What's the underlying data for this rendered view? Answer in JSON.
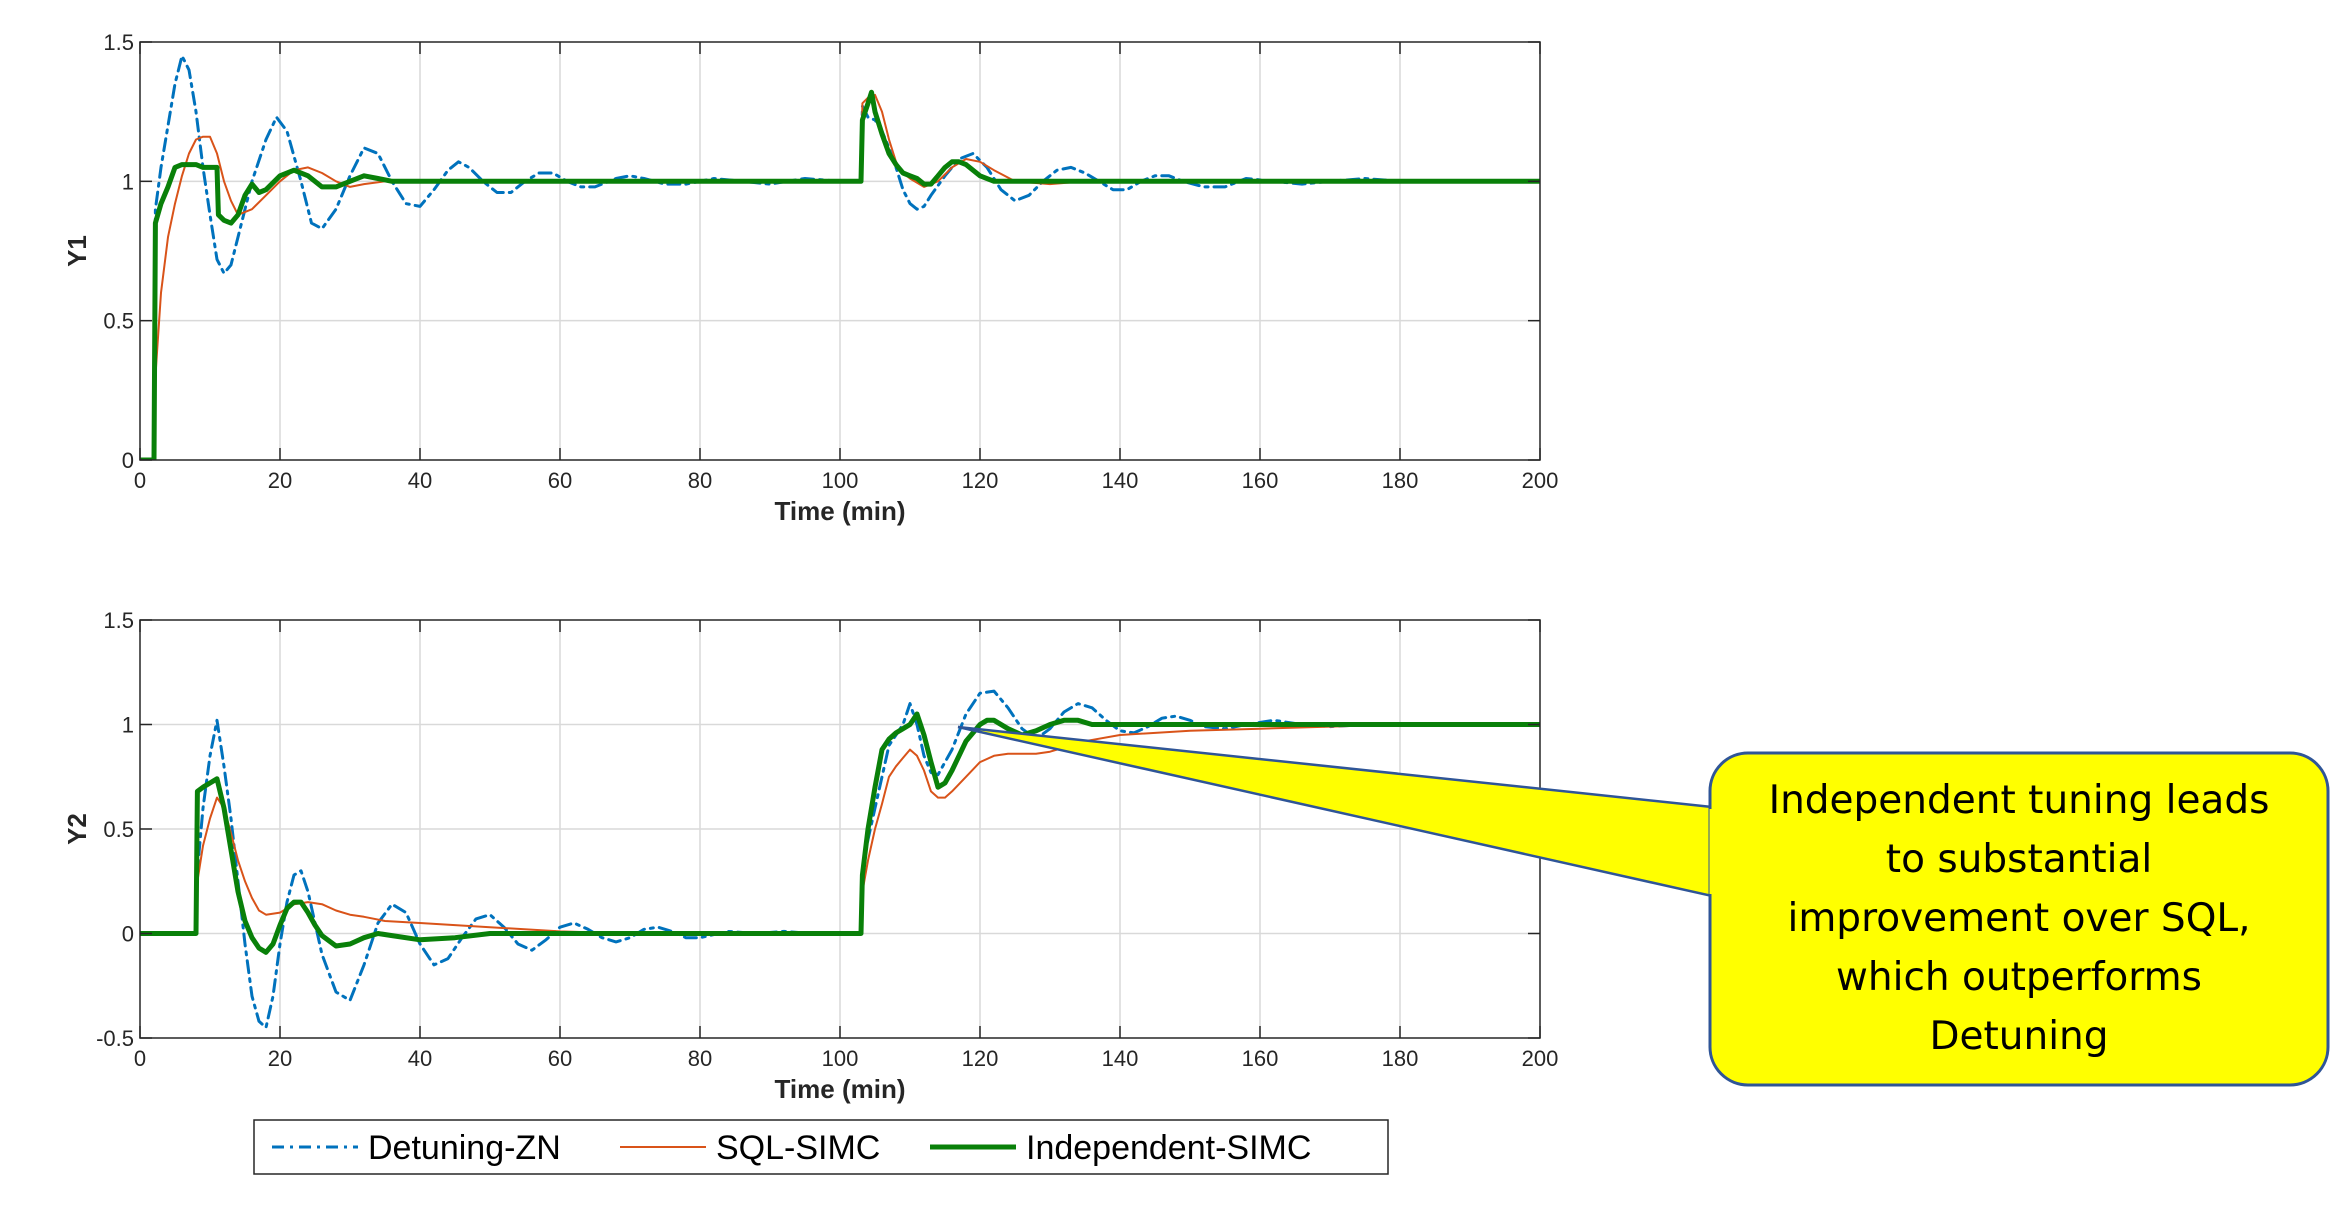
{
  "legend": {
    "entries": [
      {
        "label": "Detuning-ZN",
        "color": "#0072BD",
        "dash": "dashdot",
        "width": 3
      },
      {
        "label": "SQL-SIMC",
        "color": "#D95319",
        "dash": "solid",
        "width": 2
      },
      {
        "label": "Independent-SIMC",
        "color": "#098009",
        "dash": "solid",
        "width": 5
      }
    ]
  },
  "callout": {
    "lines": [
      "Independent tuning leads",
      "to substantial",
      "improvement over SQL,",
      "which outperforms",
      "Detuning"
    ],
    "fill": "#FFFF00",
    "border": "#2F5597"
  },
  "chart_data": [
    {
      "type": "line",
      "title": "",
      "xlabel": "Time (min)",
      "ylabel": "Y1",
      "xlim": [
        0,
        200
      ],
      "ylim": [
        0,
        1.5
      ],
      "xticks": [
        0,
        20,
        40,
        60,
        80,
        100,
        120,
        140,
        160,
        180,
        200
      ],
      "yticks": [
        0,
        0.5,
        1,
        1.5
      ],
      "ytick_labels": [
        "0",
        "0.5",
        "1",
        "1.5"
      ],
      "grid": true,
      "series": [
        {
          "name": "Detuning-ZN",
          "x": [
            0,
            2,
            2.2,
            3,
            4,
            5,
            6,
            7,
            8,
            9,
            10,
            11,
            12,
            13,
            14,
            16,
            18,
            19.5,
            21,
            23,
            24.5,
            26,
            28,
            30,
            32,
            34,
            36,
            38,
            40,
            42,
            44,
            45.5,
            47,
            49,
            51,
            53,
            55,
            57,
            59,
            61,
            63,
            65,
            68,
            70,
            72,
            75,
            78,
            82,
            86,
            90,
            95,
            100,
            103,
            103.2,
            104,
            105,
            106,
            107,
            108,
            109,
            110,
            111,
            112,
            113,
            115,
            117,
            119,
            121,
            123,
            125,
            127,
            129,
            131,
            133,
            135,
            137,
            139,
            141,
            143,
            145,
            147,
            149,
            152,
            155,
            158,
            162,
            166,
            170,
            175,
            180,
            190,
            200
          ],
          "y": [
            0,
            0,
            0.9,
            1.05,
            1.2,
            1.35,
            1.45,
            1.4,
            1.25,
            1.05,
            0.88,
            0.72,
            0.67,
            0.7,
            0.8,
            1.0,
            1.15,
            1.23,
            1.18,
            1.0,
            0.85,
            0.83,
            0.9,
            1.02,
            1.12,
            1.1,
            1.0,
            0.92,
            0.91,
            0.97,
            1.04,
            1.07,
            1.05,
            1.0,
            0.96,
            0.96,
            1.0,
            1.03,
            1.03,
            1.0,
            0.98,
            0.98,
            1.01,
            1.02,
            1.01,
            0.99,
            0.99,
            1.01,
            1.0,
            0.99,
            1.01,
            1.0,
            1.0,
            1.27,
            1.23,
            1.22,
            1.18,
            1.12,
            1.05,
            0.97,
            0.92,
            0.9,
            0.91,
            0.95,
            1.02,
            1.08,
            1.1,
            1.05,
            0.97,
            0.93,
            0.95,
            1.0,
            1.04,
            1.05,
            1.03,
            1.0,
            0.97,
            0.97,
            1.0,
            1.02,
            1.02,
            1.0,
            0.98,
            0.98,
            1.01,
            1.0,
            0.99,
            1.0,
            1.01,
            1.0,
            1.0,
            1.0
          ]
        },
        {
          "name": "SQL-SIMC",
          "x": [
            0,
            2,
            2.2,
            3,
            4,
            5,
            6,
            7,
            8,
            9,
            10,
            11,
            12,
            13,
            14,
            16,
            18,
            20,
            22,
            24,
            26,
            28,
            30,
            32,
            35,
            40,
            50,
            60,
            80,
            100,
            103,
            103.2,
            104,
            105,
            106,
            107,
            108,
            109,
            110,
            112,
            114,
            116,
            118,
            120,
            122,
            125,
            130,
            135,
            140,
            150,
            160,
            200
          ],
          "y": [
            0,
            0,
            0.3,
            0.6,
            0.8,
            0.92,
            1.02,
            1.1,
            1.15,
            1.16,
            1.16,
            1.1,
            1.0,
            0.93,
            0.88,
            0.9,
            0.95,
            1.0,
            1.04,
            1.05,
            1.03,
            1.0,
            0.98,
            0.99,
            1.0,
            1.0,
            1.0,
            1.0,
            1.0,
            1.0,
            1.0,
            1.28,
            1.3,
            1.31,
            1.25,
            1.15,
            1.07,
            1.03,
            1.01,
            0.98,
            1.0,
            1.05,
            1.08,
            1.07,
            1.04,
            1.0,
            0.99,
            1.0,
            1.0,
            1.0,
            1.0,
            1.0
          ]
        },
        {
          "name": "Independent-SIMC",
          "x": [
            0,
            2,
            2.2,
            3,
            4,
            5,
            6,
            7,
            8,
            9,
            10,
            11,
            11.2,
            12,
            13,
            14,
            15,
            16,
            17,
            18,
            20,
            22,
            24,
            26,
            28,
            30,
            32,
            34,
            36,
            40,
            50,
            100,
            103,
            103.2,
            104,
            104.5,
            105,
            106,
            107,
            108,
            109,
            110,
            111,
            112,
            113,
            114,
            115,
            116,
            117,
            118,
            120,
            122,
            124,
            126,
            130,
            140,
            150,
            200
          ],
          "y": [
            0,
            0,
            0.85,
            0.92,
            0.98,
            1.05,
            1.06,
            1.06,
            1.06,
            1.05,
            1.05,
            1.05,
            0.88,
            0.86,
            0.85,
            0.88,
            0.95,
            0.99,
            0.96,
            0.97,
            1.02,
            1.04,
            1.02,
            0.98,
            0.98,
            1.0,
            1.02,
            1.01,
            1.0,
            1.0,
            1.0,
            1.0,
            1.0,
            1.22,
            1.28,
            1.32,
            1.25,
            1.17,
            1.1,
            1.06,
            1.03,
            1.02,
            1.01,
            0.99,
            0.99,
            1.02,
            1.05,
            1.07,
            1.07,
            1.06,
            1.02,
            1.0,
            1.0,
            1.0,
            1.0,
            1.0,
            1.0,
            1.0
          ]
        }
      ]
    },
    {
      "type": "line",
      "title": "",
      "xlabel": "Time (min)",
      "ylabel": "Y2",
      "xlim": [
        0,
        200
      ],
      "ylim": [
        -0.5,
        1.5
      ],
      "xticks": [
        0,
        20,
        40,
        60,
        80,
        100,
        120,
        140,
        160,
        180,
        200
      ],
      "yticks": [
        -0.5,
        0,
        0.5,
        1,
        1.5
      ],
      "ytick_labels": [
        "-0.5",
        "0",
        "0.5",
        "1",
        "1.5"
      ],
      "grid": true,
      "series": [
        {
          "name": "Detuning-ZN",
          "x": [
            0,
            8,
            8.2,
            9,
            10,
            11,
            12,
            13,
            14,
            15,
            16,
            17,
            18,
            19,
            20,
            21,
            22,
            23,
            24,
            25,
            26,
            28,
            30,
            32,
            34,
            36,
            38,
            40,
            42,
            44,
            46,
            48,
            50,
            52,
            54,
            56,
            58,
            60,
            62,
            64,
            66,
            68,
            70,
            72,
            74,
            76,
            78,
            80,
            84,
            88,
            92,
            96,
            100,
            102,
            103,
            103.2,
            104,
            105,
            106,
            107,
            108,
            109,
            110,
            111,
            112,
            113,
            114,
            116,
            118,
            120,
            122,
            124,
            126,
            128,
            130,
            132,
            134,
            136,
            138,
            140,
            142,
            144,
            146,
            148,
            150,
            152,
            155,
            158,
            162,
            166,
            170,
            175,
            180,
            190,
            200
          ],
          "y": [
            0,
            0,
            0.3,
            0.6,
            0.85,
            1.02,
            0.8,
            0.55,
            0.25,
            -0.05,
            -0.3,
            -0.42,
            -0.45,
            -0.3,
            -0.05,
            0.15,
            0.28,
            0.3,
            0.2,
            0.05,
            -0.1,
            -0.28,
            -0.32,
            -0.15,
            0.05,
            0.14,
            0.1,
            -0.05,
            -0.15,
            -0.12,
            -0.02,
            0.07,
            0.09,
            0.03,
            -0.05,
            -0.08,
            -0.03,
            0.03,
            0.05,
            0.02,
            -0.02,
            -0.04,
            -0.02,
            0.02,
            0.03,
            0.01,
            -0.02,
            -0.02,
            0.01,
            0.0,
            0.01,
            0.0,
            0.0,
            0.0,
            0.0,
            0.3,
            0.45,
            0.6,
            0.75,
            0.9,
            0.95,
            1.0,
            1.1,
            1.0,
            0.85,
            0.77,
            0.76,
            0.88,
            1.05,
            1.15,
            1.16,
            1.08,
            0.98,
            0.93,
            0.98,
            1.06,
            1.1,
            1.08,
            1.02,
            0.97,
            0.96,
            0.99,
            1.03,
            1.04,
            1.02,
            0.99,
            0.98,
            1.0,
            1.02,
            1.0,
            0.99,
            1.0,
            1.0,
            1.0,
            1.0
          ]
        },
        {
          "name": "SQL-SIMC",
          "x": [
            0,
            8,
            8.2,
            9,
            10,
            11,
            12,
            13,
            14,
            15,
            16,
            17,
            18,
            20,
            22,
            24,
            26,
            28,
            30,
            32,
            35,
            40,
            45,
            50,
            60,
            70,
            80,
            100,
            103,
            103.2,
            104,
            105,
            106,
            107,
            108,
            109,
            110,
            111,
            112,
            113,
            114,
            115,
            116,
            118,
            120,
            122,
            124,
            126,
            128,
            130,
            132,
            135,
            140,
            150,
            160,
            170,
            180,
            200
          ],
          "y": [
            0,
            0,
            0.25,
            0.42,
            0.55,
            0.65,
            0.6,
            0.48,
            0.35,
            0.25,
            0.17,
            0.11,
            0.09,
            0.1,
            0.14,
            0.15,
            0.14,
            0.11,
            0.09,
            0.08,
            0.06,
            0.05,
            0.04,
            0.03,
            0.01,
            0.0,
            0.0,
            0.0,
            0.0,
            0.2,
            0.35,
            0.5,
            0.62,
            0.75,
            0.8,
            0.84,
            0.88,
            0.85,
            0.78,
            0.68,
            0.65,
            0.65,
            0.68,
            0.75,
            0.82,
            0.85,
            0.86,
            0.86,
            0.86,
            0.87,
            0.89,
            0.92,
            0.95,
            0.97,
            0.98,
            0.99,
            1.0,
            1.0
          ]
        },
        {
          "name": "Independent-SIMC",
          "x": [
            0,
            8,
            8.2,
            9,
            10,
            11,
            12,
            13,
            14,
            15,
            16,
            17,
            18,
            19,
            20,
            21,
            22,
            23,
            24,
            25,
            26,
            28,
            30,
            32,
            34,
            36,
            40,
            45,
            50,
            60,
            80,
            100,
            103,
            103.2,
            104,
            105,
            106,
            107,
            108,
            109,
            110,
            111,
            112,
            113,
            114,
            115,
            116,
            118,
            120,
            121,
            122,
            124,
            126,
            128,
            130,
            132,
            134,
            136,
            140,
            150,
            200
          ],
          "y": [
            0,
            0,
            0.68,
            0.7,
            0.72,
            0.74,
            0.6,
            0.4,
            0.2,
            0.06,
            -0.02,
            -0.07,
            -0.09,
            -0.05,
            0.04,
            0.12,
            0.15,
            0.15,
            0.1,
            0.04,
            -0.01,
            -0.06,
            -0.05,
            -0.02,
            0.0,
            -0.01,
            -0.03,
            -0.02,
            0.0,
            0.0,
            0.0,
            0.0,
            0.0,
            0.28,
            0.5,
            0.7,
            0.88,
            0.93,
            0.96,
            0.98,
            1.0,
            1.05,
            0.95,
            0.82,
            0.7,
            0.72,
            0.78,
            0.92,
            1.0,
            1.02,
            1.02,
            0.98,
            0.95,
            0.97,
            1.0,
            1.02,
            1.02,
            1.0,
            1.0,
            1.0,
            1.0
          ]
        }
      ]
    }
  ]
}
